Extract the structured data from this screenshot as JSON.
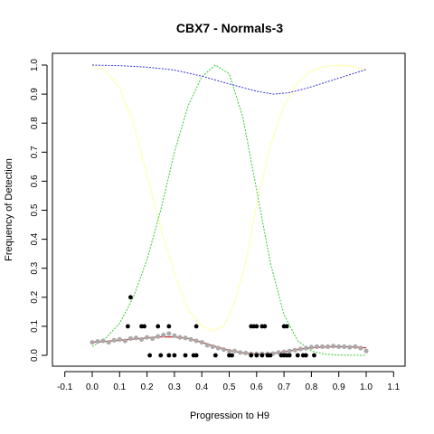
{
  "chart_data": {
    "type": "scatter",
    "title": "CBX7 - Normals-3",
    "xlabel": "Progression to H9",
    "ylabel": "Frequency of Detection",
    "xlim": [
      -0.1,
      1.1
    ],
    "ylim": [
      0.0,
      1.0
    ],
    "x_ticks": [
      -0.1,
      0.0,
      0.1,
      0.2,
      0.3,
      0.4,
      0.5,
      0.6,
      0.7,
      0.8,
      0.9,
      1.0,
      1.1
    ],
    "x_tick_labels": [
      "-0.1",
      "0.0",
      "0.1",
      "0.2",
      "0.3",
      "0.4",
      "0.5",
      "0.6",
      "0.7",
      "0.8",
      "0.9",
      "1.0",
      "1.1"
    ],
    "y_ticks": [
      0.0,
      0.1,
      0.2,
      0.3,
      0.4,
      0.5,
      0.6,
      0.7,
      0.8,
      0.9,
      1.0
    ],
    "y_tick_labels": [
      "0.0",
      "0.1",
      "0.2",
      "0.3",
      "0.4",
      "0.5",
      "0.6",
      "0.7",
      "0.8",
      "0.9",
      "1.0"
    ],
    "grid": false,
    "legend": "none",
    "colors": {
      "points": "#000000",
      "gray_points": "#aaaaaa",
      "red_line": "#cc3333",
      "green_line": "#33cc33",
      "yellow_line": "#ffff66",
      "blue_line": "#3333dd"
    },
    "black_points": [
      {
        "x": 0.14,
        "y": 0.2
      },
      {
        "x": 0.13,
        "y": 0.1
      },
      {
        "x": 0.18,
        "y": 0.1
      },
      {
        "x": 0.19,
        "y": 0.1
      },
      {
        "x": 0.24,
        "y": 0.1
      },
      {
        "x": 0.28,
        "y": 0.1
      },
      {
        "x": 0.38,
        "y": 0.1
      },
      {
        "x": 0.58,
        "y": 0.1
      },
      {
        "x": 0.59,
        "y": 0.1
      },
      {
        "x": 0.6,
        "y": 0.1
      },
      {
        "x": 0.62,
        "y": 0.1
      },
      {
        "x": 0.63,
        "y": 0.1
      },
      {
        "x": 0.7,
        "y": 0.1
      },
      {
        "x": 0.71,
        "y": 0.1
      },
      {
        "x": 0.21,
        "y": 0.0
      },
      {
        "x": 0.25,
        "y": 0.0
      },
      {
        "x": 0.28,
        "y": 0.0
      },
      {
        "x": 0.3,
        "y": 0.0
      },
      {
        "x": 0.34,
        "y": 0.0
      },
      {
        "x": 0.37,
        "y": 0.0
      },
      {
        "x": 0.38,
        "y": 0.0
      },
      {
        "x": 0.45,
        "y": 0.0
      },
      {
        "x": 0.5,
        "y": 0.0
      },
      {
        "x": 0.51,
        "y": 0.0
      },
      {
        "x": 0.58,
        "y": 0.0
      },
      {
        "x": 0.6,
        "y": 0.0
      },
      {
        "x": 0.62,
        "y": 0.0
      },
      {
        "x": 0.64,
        "y": 0.0
      },
      {
        "x": 0.65,
        "y": 0.0
      },
      {
        "x": 0.69,
        "y": 0.0
      },
      {
        "x": 0.7,
        "y": 0.0
      },
      {
        "x": 0.71,
        "y": 0.0
      },
      {
        "x": 0.72,
        "y": 0.0
      },
      {
        "x": 0.75,
        "y": 0.0
      },
      {
        "x": 0.77,
        "y": 0.0
      },
      {
        "x": 0.78,
        "y": 0.0
      },
      {
        "x": 0.81,
        "y": 0.0
      }
    ],
    "gray_points": [
      {
        "x": 0.0,
        "y": 0.045
      },
      {
        "x": 0.02,
        "y": 0.048
      },
      {
        "x": 0.04,
        "y": 0.05
      },
      {
        "x": 0.06,
        "y": 0.045
      },
      {
        "x": 0.08,
        "y": 0.052
      },
      {
        "x": 0.1,
        "y": 0.055
      },
      {
        "x": 0.12,
        "y": 0.05
      },
      {
        "x": 0.14,
        "y": 0.058
      },
      {
        "x": 0.16,
        "y": 0.06
      },
      {
        "x": 0.18,
        "y": 0.055
      },
      {
        "x": 0.2,
        "y": 0.062
      },
      {
        "x": 0.22,
        "y": 0.058
      },
      {
        "x": 0.24,
        "y": 0.065
      },
      {
        "x": 0.26,
        "y": 0.07
      },
      {
        "x": 0.28,
        "y": 0.075
      },
      {
        "x": 0.3,
        "y": 0.068
      },
      {
        "x": 0.32,
        "y": 0.062
      },
      {
        "x": 0.34,
        "y": 0.06
      },
      {
        "x": 0.36,
        "y": 0.055
      },
      {
        "x": 0.38,
        "y": 0.05
      },
      {
        "x": 0.4,
        "y": 0.045
      },
      {
        "x": 0.42,
        "y": 0.035
      },
      {
        "x": 0.44,
        "y": 0.03
      },
      {
        "x": 0.46,
        "y": 0.025
      },
      {
        "x": 0.48,
        "y": 0.02
      },
      {
        "x": 0.5,
        "y": 0.015
      },
      {
        "x": 0.52,
        "y": 0.015
      },
      {
        "x": 0.54,
        "y": 0.01
      },
      {
        "x": 0.56,
        "y": 0.008
      },
      {
        "x": 0.58,
        "y": 0.005
      },
      {
        "x": 0.6,
        "y": 0.005
      },
      {
        "x": 0.62,
        "y": 0.005
      },
      {
        "x": 0.64,
        "y": 0.005
      },
      {
        "x": 0.66,
        "y": 0.006
      },
      {
        "x": 0.68,
        "y": 0.01
      },
      {
        "x": 0.7,
        "y": 0.012
      },
      {
        "x": 0.72,
        "y": 0.015
      },
      {
        "x": 0.74,
        "y": 0.018
      },
      {
        "x": 0.76,
        "y": 0.022
      },
      {
        "x": 0.78,
        "y": 0.025
      },
      {
        "x": 0.8,
        "y": 0.028
      },
      {
        "x": 0.82,
        "y": 0.03
      },
      {
        "x": 0.84,
        "y": 0.03
      },
      {
        "x": 0.86,
        "y": 0.03
      },
      {
        "x": 0.88,
        "y": 0.032
      },
      {
        "x": 0.9,
        "y": 0.03
      },
      {
        "x": 0.92,
        "y": 0.03
      },
      {
        "x": 0.94,
        "y": 0.028
      },
      {
        "x": 0.96,
        "y": 0.03
      },
      {
        "x": 0.98,
        "y": 0.025
      },
      {
        "x": 1.0,
        "y": 0.015
      }
    ],
    "red_curve": [
      {
        "x": 0.0,
        "y": 0.045
      },
      {
        "x": 0.05,
        "y": 0.048
      },
      {
        "x": 0.1,
        "y": 0.052
      },
      {
        "x": 0.15,
        "y": 0.056
      },
      {
        "x": 0.2,
        "y": 0.06
      },
      {
        "x": 0.25,
        "y": 0.064
      },
      {
        "x": 0.3,
        "y": 0.063
      },
      {
        "x": 0.35,
        "y": 0.058
      },
      {
        "x": 0.4,
        "y": 0.045
      },
      {
        "x": 0.45,
        "y": 0.03
      },
      {
        "x": 0.5,
        "y": 0.017
      },
      {
        "x": 0.55,
        "y": 0.008
      },
      {
        "x": 0.6,
        "y": 0.004
      },
      {
        "x": 0.65,
        "y": 0.005
      },
      {
        "x": 0.7,
        "y": 0.012
      },
      {
        "x": 0.75,
        "y": 0.02
      },
      {
        "x": 0.8,
        "y": 0.026
      },
      {
        "x": 0.85,
        "y": 0.029
      },
      {
        "x": 0.9,
        "y": 0.03
      },
      {
        "x": 0.95,
        "y": 0.029
      },
      {
        "x": 1.0,
        "y": 0.026
      }
    ],
    "green_curve": [
      {
        "x": 0.0,
        "y": 0.03
      },
      {
        "x": 0.05,
        "y": 0.06
      },
      {
        "x": 0.1,
        "y": 0.11
      },
      {
        "x": 0.15,
        "y": 0.2
      },
      {
        "x": 0.2,
        "y": 0.33
      },
      {
        "x": 0.25,
        "y": 0.5
      },
      {
        "x": 0.3,
        "y": 0.7
      },
      {
        "x": 0.35,
        "y": 0.86
      },
      {
        "x": 0.4,
        "y": 0.96
      },
      {
        "x": 0.45,
        "y": 1.0
      },
      {
        "x": 0.5,
        "y": 0.97
      },
      {
        "x": 0.55,
        "y": 0.82
      },
      {
        "x": 0.6,
        "y": 0.57
      },
      {
        "x": 0.65,
        "y": 0.32
      },
      {
        "x": 0.7,
        "y": 0.14
      },
      {
        "x": 0.75,
        "y": 0.05
      },
      {
        "x": 0.8,
        "y": 0.015
      },
      {
        "x": 0.85,
        "y": 0.004
      },
      {
        "x": 0.9,
        "y": 0.001
      },
      {
        "x": 1.0,
        "y": 0.0
      }
    ],
    "yellow_curve": [
      {
        "x": 0.0,
        "y": 1.0
      },
      {
        "x": 0.05,
        "y": 0.98
      },
      {
        "x": 0.1,
        "y": 0.92
      },
      {
        "x": 0.15,
        "y": 0.8
      },
      {
        "x": 0.2,
        "y": 0.62
      },
      {
        "x": 0.25,
        "y": 0.44
      },
      {
        "x": 0.3,
        "y": 0.28
      },
      {
        "x": 0.35,
        "y": 0.16
      },
      {
        "x": 0.4,
        "y": 0.1
      },
      {
        "x": 0.44,
        "y": 0.085
      },
      {
        "x": 0.48,
        "y": 0.1
      },
      {
        "x": 0.52,
        "y": 0.18
      },
      {
        "x": 0.56,
        "y": 0.32
      },
      {
        "x": 0.6,
        "y": 0.52
      },
      {
        "x": 0.65,
        "y": 0.72
      },
      {
        "x": 0.7,
        "y": 0.86
      },
      {
        "x": 0.75,
        "y": 0.94
      },
      {
        "x": 0.8,
        "y": 0.98
      },
      {
        "x": 0.85,
        "y": 0.995
      },
      {
        "x": 0.9,
        "y": 1.0
      },
      {
        "x": 0.95,
        "y": 0.995
      },
      {
        "x": 1.0,
        "y": 0.985
      }
    ],
    "blue_curve": [
      {
        "x": 0.0,
        "y": 1.0
      },
      {
        "x": 0.1,
        "y": 0.998
      },
      {
        "x": 0.2,
        "y": 0.993
      },
      {
        "x": 0.3,
        "y": 0.983
      },
      {
        "x": 0.4,
        "y": 0.962
      },
      {
        "x": 0.5,
        "y": 0.935
      },
      {
        "x": 0.6,
        "y": 0.91
      },
      {
        "x": 0.66,
        "y": 0.9
      },
      {
        "x": 0.72,
        "y": 0.905
      },
      {
        "x": 0.8,
        "y": 0.925
      },
      {
        "x": 0.9,
        "y": 0.955
      },
      {
        "x": 1.0,
        "y": 0.985
      }
    ]
  }
}
